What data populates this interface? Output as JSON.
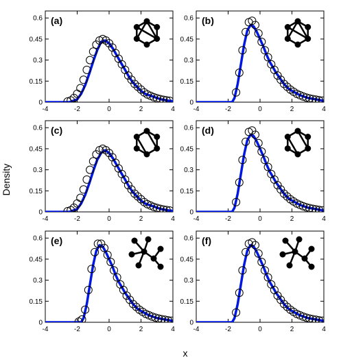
{
  "figure": {
    "ylabel": "Density",
    "xlabel": "x"
  },
  "style": {
    "fit_color": "#0018e0",
    "marker_color": "#000000",
    "axes_color": "#000000"
  },
  "chart_data": [
    {
      "type": "line",
      "panel": "(a)",
      "inset_icon": "hexagon-graph-with-cross-edge",
      "xlim": [
        -4,
        4
      ],
      "ylim": [
        0,
        0.65
      ],
      "xticks": [
        -4,
        -2,
        0,
        2,
        4
      ],
      "yticks": [
        0,
        0.15,
        0.3,
        0.45,
        0.6
      ],
      "ytick_labels": [
        "0",
        "0.15",
        "0.3",
        "0.45",
        "0.6"
      ],
      "series": [
        {
          "type": "line",
          "x": [
            -4.0,
            -2.5,
            -2.0,
            -1.75,
            -1.5,
            -1.25,
            -1.0,
            -0.75,
            -0.5,
            -0.25,
            0.0,
            0.25,
            0.5,
            0.75,
            1.0,
            1.25,
            1.5,
            1.75,
            2.0,
            2.25,
            2.5,
            2.75,
            3.0,
            3.25,
            3.5,
            3.75,
            4.0
          ],
          "y": [
            0.0,
            0.0,
            0.02,
            0.06,
            0.12,
            0.2,
            0.29,
            0.37,
            0.43,
            0.44,
            0.42,
            0.38,
            0.33,
            0.28,
            0.23,
            0.18,
            0.14,
            0.11,
            0.08,
            0.06,
            0.05,
            0.04,
            0.03,
            0.02,
            0.015,
            0.01,
            0.008
          ]
        },
        {
          "type": "scatter",
          "x": [
            -2.6,
            -2.4,
            -2.2,
            -2.0,
            -1.8,
            -1.6,
            -1.4,
            -1.2,
            -1.0,
            -0.8,
            -0.6,
            -0.4,
            -0.2,
            0.0,
            0.2,
            0.4,
            0.6,
            0.8,
            1.0,
            1.2,
            1.4,
            1.6,
            1.8,
            2.0,
            2.2,
            2.4,
            2.6,
            2.8,
            3.0,
            3.2,
            3.4,
            3.6,
            3.8
          ],
          "y": [
            0.005,
            0.012,
            0.03,
            0.06,
            0.1,
            0.16,
            0.23,
            0.3,
            0.36,
            0.41,
            0.44,
            0.45,
            0.44,
            0.42,
            0.39,
            0.35,
            0.31,
            0.27,
            0.23,
            0.19,
            0.16,
            0.13,
            0.11,
            0.09,
            0.07,
            0.055,
            0.045,
            0.035,
            0.028,
            0.022,
            0.017,
            0.013,
            0.01
          ]
        }
      ]
    },
    {
      "type": "line",
      "panel": "(b)",
      "inset_icon": "hexagon-graph-with-cross-edge",
      "xlim": [
        -4,
        4
      ],
      "ylim": [
        0,
        0.65
      ],
      "xticks": [
        -4,
        -2,
        0,
        2,
        4
      ],
      "yticks": [
        0,
        0.15,
        0.3,
        0.45,
        0.6
      ],
      "ytick_labels": [
        "0",
        "0.15",
        "0.3",
        "0.45",
        "0.6"
      ],
      "series": [
        {
          "type": "line",
          "x": [
            -4.0,
            -1.75,
            -1.6,
            -1.4,
            -1.2,
            -1.0,
            -0.8,
            -0.6,
            -0.4,
            -0.2,
            0.0,
            0.2,
            0.4,
            0.6,
            0.8,
            1.0,
            1.25,
            1.5,
            1.75,
            2.0,
            2.5,
            3.0,
            3.5,
            4.0
          ],
          "y": [
            0.0,
            0.0,
            0.03,
            0.13,
            0.27,
            0.41,
            0.51,
            0.55,
            0.54,
            0.5,
            0.45,
            0.4,
            0.34,
            0.29,
            0.25,
            0.21,
            0.17,
            0.13,
            0.1,
            0.08,
            0.05,
            0.03,
            0.02,
            0.01
          ]
        },
        {
          "type": "scatter",
          "x": [
            -1.5,
            -1.3,
            -1.1,
            -0.9,
            -0.7,
            -0.5,
            -0.3,
            -0.1,
            0.1,
            0.3,
            0.5,
            0.7,
            0.9,
            1.1,
            1.3,
            1.5,
            1.7,
            1.9,
            2.1,
            2.3,
            2.5,
            2.7,
            2.9,
            3.1,
            3.3,
            3.5,
            3.7,
            3.9
          ],
          "y": [
            0.07,
            0.21,
            0.37,
            0.5,
            0.57,
            0.58,
            0.55,
            0.49,
            0.43,
            0.37,
            0.32,
            0.27,
            0.23,
            0.19,
            0.16,
            0.13,
            0.11,
            0.09,
            0.075,
            0.06,
            0.05,
            0.04,
            0.033,
            0.027,
            0.022,
            0.018,
            0.014,
            0.011
          ]
        }
      ]
    },
    {
      "type": "line",
      "panel": "(c)",
      "inset_icon": "hexagon-graph-with-diagonal-edge",
      "xlim": [
        -4,
        4
      ],
      "ylim": [
        0,
        0.65
      ],
      "xticks": [
        -4,
        -2,
        0,
        2,
        4
      ],
      "yticks": [
        0,
        0.15,
        0.3,
        0.45,
        0.6
      ],
      "ytick_labels": [
        "0",
        "0.15",
        "0.3",
        "0.45",
        "0.6"
      ],
      "series": [
        {
          "type": "line",
          "x": [
            -4.0,
            -2.5,
            -2.0,
            -1.75,
            -1.5,
            -1.25,
            -1.0,
            -0.75,
            -0.5,
            -0.25,
            0.0,
            0.25,
            0.5,
            0.75,
            1.0,
            1.25,
            1.5,
            1.75,
            2.0,
            2.25,
            2.5,
            2.75,
            3.0,
            3.25,
            3.5,
            3.75,
            4.0
          ],
          "y": [
            0.0,
            0.0,
            0.02,
            0.06,
            0.12,
            0.2,
            0.29,
            0.37,
            0.42,
            0.44,
            0.42,
            0.38,
            0.33,
            0.28,
            0.23,
            0.18,
            0.14,
            0.11,
            0.08,
            0.06,
            0.05,
            0.04,
            0.03,
            0.02,
            0.015,
            0.01,
            0.008
          ]
        },
        {
          "type": "scatter",
          "x": [
            -2.6,
            -2.4,
            -2.2,
            -2.0,
            -1.8,
            -1.6,
            -1.4,
            -1.2,
            -1.0,
            -0.8,
            -0.6,
            -0.4,
            -0.2,
            0.0,
            0.2,
            0.4,
            0.6,
            0.8,
            1.0,
            1.2,
            1.4,
            1.6,
            1.8,
            2.0,
            2.2,
            2.4,
            2.6,
            2.8,
            3.0,
            3.2,
            3.4,
            3.6,
            3.8
          ],
          "y": [
            0.005,
            0.012,
            0.03,
            0.06,
            0.1,
            0.16,
            0.23,
            0.3,
            0.36,
            0.41,
            0.44,
            0.45,
            0.44,
            0.42,
            0.39,
            0.35,
            0.31,
            0.27,
            0.23,
            0.19,
            0.16,
            0.13,
            0.11,
            0.09,
            0.07,
            0.055,
            0.045,
            0.035,
            0.028,
            0.022,
            0.017,
            0.013,
            0.01
          ]
        }
      ]
    },
    {
      "type": "line",
      "panel": "(d)",
      "inset_icon": "hexagon-graph-with-diagonal-edge",
      "xlim": [
        -4,
        4
      ],
      "ylim": [
        0,
        0.65
      ],
      "xticks": [
        -4,
        -2,
        0,
        2,
        4
      ],
      "yticks": [
        0,
        0.15,
        0.3,
        0.45,
        0.6
      ],
      "ytick_labels": [
        "0",
        "0.15",
        "0.3",
        "0.45",
        "0.6"
      ],
      "series": [
        {
          "type": "line",
          "x": [
            -4.0,
            -1.75,
            -1.6,
            -1.4,
            -1.2,
            -1.0,
            -0.8,
            -0.6,
            -0.4,
            -0.2,
            0.0,
            0.2,
            0.4,
            0.6,
            0.8,
            1.0,
            1.25,
            1.5,
            1.75,
            2.0,
            2.5,
            3.0,
            3.5,
            4.0
          ],
          "y": [
            0.0,
            0.0,
            0.03,
            0.13,
            0.27,
            0.41,
            0.51,
            0.55,
            0.54,
            0.5,
            0.45,
            0.4,
            0.34,
            0.29,
            0.25,
            0.21,
            0.17,
            0.13,
            0.1,
            0.08,
            0.05,
            0.03,
            0.02,
            0.01
          ]
        },
        {
          "type": "scatter",
          "x": [
            -1.5,
            -1.3,
            -1.1,
            -0.9,
            -0.7,
            -0.5,
            -0.3,
            -0.1,
            0.1,
            0.3,
            0.5,
            0.7,
            0.9,
            1.1,
            1.3,
            1.5,
            1.7,
            1.9,
            2.1,
            2.3,
            2.5,
            2.7,
            2.9,
            3.1,
            3.3,
            3.5,
            3.7,
            3.9
          ],
          "y": [
            0.07,
            0.21,
            0.37,
            0.5,
            0.57,
            0.58,
            0.55,
            0.49,
            0.43,
            0.37,
            0.32,
            0.27,
            0.23,
            0.19,
            0.16,
            0.13,
            0.11,
            0.09,
            0.075,
            0.06,
            0.05,
            0.04,
            0.033,
            0.027,
            0.022,
            0.018,
            0.014,
            0.011
          ]
        }
      ]
    },
    {
      "type": "line",
      "panel": "(e)",
      "inset_icon": "tree-graph",
      "xlim": [
        -4,
        4
      ],
      "ylim": [
        0,
        0.65
      ],
      "xticks": [
        -4,
        -2,
        0,
        2,
        4
      ],
      "yticks": [
        0,
        0.15,
        0.3,
        0.45,
        0.6
      ],
      "ytick_labels": [
        "0",
        "0.15",
        "0.3",
        "0.45",
        "0.6"
      ],
      "series": [
        {
          "type": "line",
          "x": [
            -4.0,
            -1.75,
            -1.6,
            -1.4,
            -1.2,
            -1.0,
            -0.8,
            -0.6,
            -0.4,
            -0.2,
            0.0,
            0.2,
            0.4,
            0.6,
            0.8,
            1.0,
            1.25,
            1.5,
            1.75,
            2.0,
            2.5,
            3.0,
            3.5,
            4.0
          ],
          "y": [
            0.0,
            0.0,
            0.03,
            0.13,
            0.27,
            0.41,
            0.51,
            0.55,
            0.54,
            0.5,
            0.45,
            0.4,
            0.34,
            0.29,
            0.25,
            0.21,
            0.17,
            0.13,
            0.1,
            0.08,
            0.05,
            0.03,
            0.02,
            0.01
          ]
        },
        {
          "type": "scatter",
          "x": [
            -1.9,
            -1.7,
            -1.5,
            -1.3,
            -1.1,
            -0.9,
            -0.7,
            -0.5,
            -0.3,
            -0.1,
            0.1,
            0.3,
            0.5,
            0.7,
            0.9,
            1.1,
            1.3,
            1.5,
            1.7,
            1.9,
            2.1,
            2.3,
            2.5,
            2.7,
            2.9,
            3.1,
            3.3,
            3.5,
            3.7,
            3.9
          ],
          "y": [
            0.005,
            0.02,
            0.09,
            0.23,
            0.38,
            0.5,
            0.56,
            0.56,
            0.53,
            0.48,
            0.43,
            0.37,
            0.32,
            0.27,
            0.23,
            0.19,
            0.16,
            0.13,
            0.11,
            0.09,
            0.075,
            0.06,
            0.05,
            0.04,
            0.033,
            0.027,
            0.022,
            0.018,
            0.014,
            0.011
          ]
        }
      ]
    },
    {
      "type": "line",
      "panel": "(f)",
      "inset_icon": "tree-graph",
      "xlim": [
        -4,
        4
      ],
      "ylim": [
        0,
        0.65
      ],
      "xticks": [
        -4,
        -2,
        0,
        2,
        4
      ],
      "yticks": [
        0,
        0.15,
        0.3,
        0.45,
        0.6
      ],
      "ytick_labels": [
        "0",
        "0.15",
        "0.3",
        "0.45",
        "0.6"
      ],
      "series": [
        {
          "type": "line",
          "x": [
            -4.0,
            -1.75,
            -1.6,
            -1.4,
            -1.2,
            -1.0,
            -0.8,
            -0.6,
            -0.4,
            -0.2,
            0.0,
            0.2,
            0.4,
            0.6,
            0.8,
            1.0,
            1.25,
            1.5,
            1.75,
            2.0,
            2.5,
            3.0,
            3.5,
            4.0
          ],
          "y": [
            0.0,
            0.0,
            0.03,
            0.13,
            0.27,
            0.41,
            0.51,
            0.55,
            0.54,
            0.5,
            0.45,
            0.4,
            0.34,
            0.29,
            0.25,
            0.21,
            0.17,
            0.13,
            0.1,
            0.08,
            0.05,
            0.03,
            0.02,
            0.01
          ]
        },
        {
          "type": "scatter",
          "x": [
            -1.5,
            -1.3,
            -1.1,
            -0.9,
            -0.7,
            -0.5,
            -0.3,
            -0.1,
            0.1,
            0.3,
            0.5,
            0.7,
            0.9,
            1.1,
            1.3,
            1.5,
            1.7,
            1.9,
            2.1,
            2.3,
            2.5,
            2.7,
            2.9,
            3.1,
            3.3,
            3.5,
            3.7,
            3.9
          ],
          "y": [
            0.07,
            0.21,
            0.37,
            0.5,
            0.56,
            0.57,
            0.55,
            0.49,
            0.43,
            0.37,
            0.32,
            0.27,
            0.23,
            0.19,
            0.16,
            0.13,
            0.11,
            0.09,
            0.075,
            0.06,
            0.05,
            0.04,
            0.033,
            0.027,
            0.022,
            0.018,
            0.014,
            0.011
          ]
        }
      ]
    }
  ]
}
